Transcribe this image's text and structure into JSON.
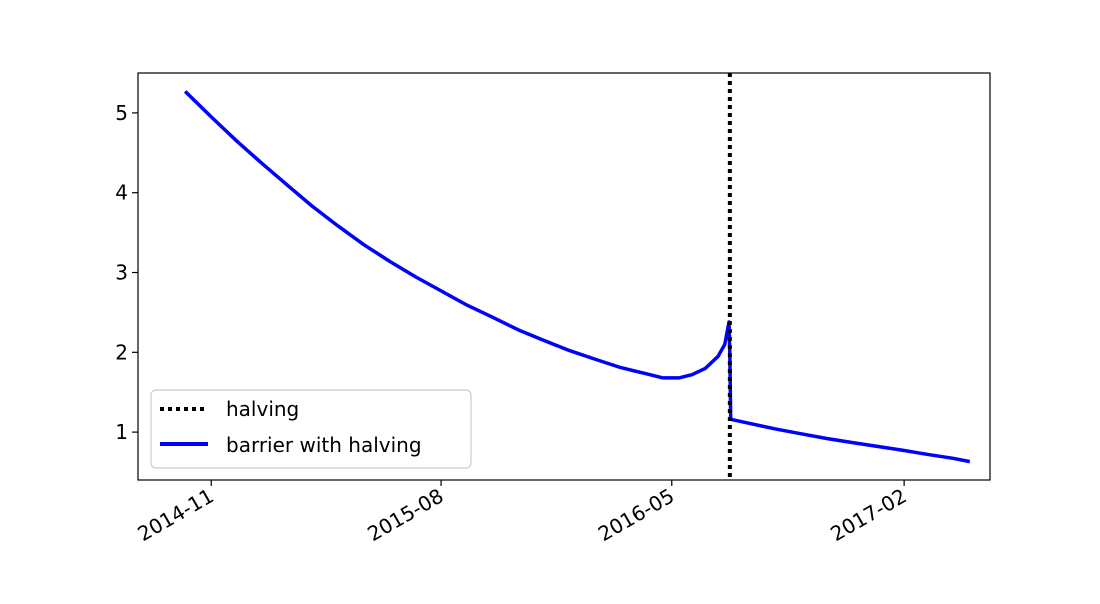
{
  "chart_data": {
    "type": "line",
    "title": "",
    "xlabel": "",
    "ylabel": "",
    "x_axis_type": "date",
    "xlim": [
      "2014-08-06",
      "2017-05-14"
    ],
    "ylim": [
      0.4,
      5.5
    ],
    "x_ticks": [
      {
        "date": "2014-11-01",
        "label": "2014-11"
      },
      {
        "date": "2015-08-01",
        "label": "2015-08"
      },
      {
        "date": "2016-05-01",
        "label": "2016-05"
      },
      {
        "date": "2017-02-01",
        "label": "2017-02"
      }
    ],
    "y_ticks": [
      {
        "value": 1,
        "label": "1"
      },
      {
        "value": 2,
        "label": "2"
      },
      {
        "value": 3,
        "label": "3"
      },
      {
        "value": 4,
        "label": "4"
      },
      {
        "value": 5,
        "label": "5"
      }
    ],
    "grid": false,
    "legend_position": "lower-left",
    "vlines": [
      {
        "name": "halving",
        "x": "2016-07-09",
        "color": "#000000",
        "style": "dotted"
      }
    ],
    "series": [
      {
        "name": "barrier with halving",
        "color": "#0000ff",
        "style": "solid",
        "points": [
          {
            "x": "2014-10-01",
            "y": 5.27
          },
          {
            "x": "2014-11-01",
            "y": 4.95
          },
          {
            "x": "2014-12-01",
            "y": 4.65
          },
          {
            "x": "2015-01-01",
            "y": 4.36
          },
          {
            "x": "2015-02-01",
            "y": 4.08
          },
          {
            "x": "2015-03-01",
            "y": 3.83
          },
          {
            "x": "2015-04-01",
            "y": 3.58
          },
          {
            "x": "2015-05-01",
            "y": 3.35
          },
          {
            "x": "2015-06-01",
            "y": 3.14
          },
          {
            "x": "2015-07-01",
            "y": 2.95
          },
          {
            "x": "2015-08-01",
            "y": 2.77
          },
          {
            "x": "2015-09-01",
            "y": 2.59
          },
          {
            "x": "2015-10-01",
            "y": 2.44
          },
          {
            "x": "2015-11-01",
            "y": 2.28
          },
          {
            "x": "2015-12-01",
            "y": 2.15
          },
          {
            "x": "2016-01-01",
            "y": 2.02
          },
          {
            "x": "2016-02-01",
            "y": 1.91
          },
          {
            "x": "2016-03-01",
            "y": 1.81
          },
          {
            "x": "2016-04-01",
            "y": 1.73
          },
          {
            "x": "2016-04-20",
            "y": 1.68
          },
          {
            "x": "2016-05-10",
            "y": 1.68
          },
          {
            "x": "2016-05-25",
            "y": 1.72
          },
          {
            "x": "2016-06-10",
            "y": 1.8
          },
          {
            "x": "2016-06-25",
            "y": 1.95
          },
          {
            "x": "2016-07-03",
            "y": 2.1
          },
          {
            "x": "2016-07-08",
            "y": 2.38
          },
          {
            "x": "2016-07-09",
            "y": 1.96
          },
          {
            "x": "2016-07-10",
            "y": 1.16
          },
          {
            "x": "2016-08-01",
            "y": 1.11
          },
          {
            "x": "2016-09-01",
            "y": 1.04
          },
          {
            "x": "2016-10-01",
            "y": 0.98
          },
          {
            "x": "2016-11-01",
            "y": 0.92
          },
          {
            "x": "2016-12-01",
            "y": 0.87
          },
          {
            "x": "2017-01-01",
            "y": 0.82
          },
          {
            "x": "2017-02-01",
            "y": 0.77
          },
          {
            "x": "2017-03-01",
            "y": 0.72
          },
          {
            "x": "2017-04-01",
            "y": 0.67
          },
          {
            "x": "2017-04-20",
            "y": 0.63
          }
        ]
      }
    ]
  },
  "legend": {
    "items": [
      {
        "label": "halving",
        "color": "#000000",
        "style": "dotted"
      },
      {
        "label": "barrier with halving",
        "color": "#0000ff",
        "style": "solid"
      }
    ]
  }
}
